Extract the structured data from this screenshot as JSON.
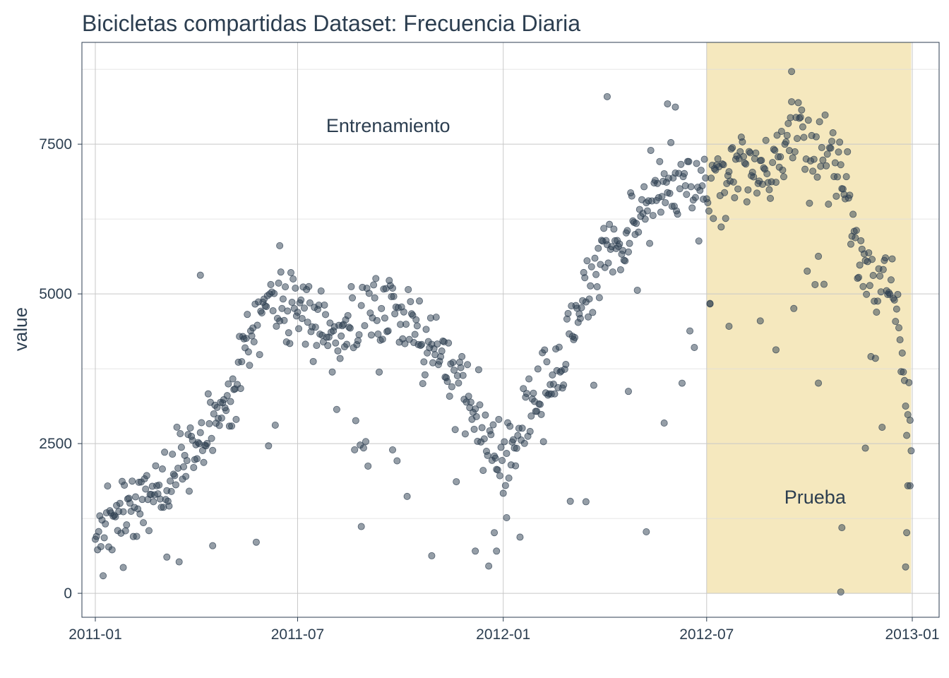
{
  "chart_data": {
    "type": "scatter",
    "title": "Bicicletas compartidas Dataset: Frecuencia Diaria",
    "xlabel": "",
    "ylabel": "value",
    "x_ticks": [
      "2011-01",
      "2011-07",
      "2012-01",
      "2012-07",
      "2013-01"
    ],
    "y_ticks": [
      0,
      2500,
      5000,
      7500
    ],
    "xlim": [
      "2010-12-20",
      "2013-01-25"
    ],
    "ylim": [
      -400,
      9200
    ],
    "grid": true,
    "legend": "none",
    "regions": [
      {
        "label": "Entrenamiento",
        "start": "2011-01-01",
        "end": "2012-06-30",
        "shaded": false,
        "label_x": "2011-09-20",
        "label_y": 7700
      },
      {
        "label": "Prueba",
        "start": "2012-07-01",
        "end": "2012-12-31",
        "shaded": true,
        "fill": "#F5E8BE",
        "label_x": "2012-10-06",
        "label_y": 1500,
        "y_range": [
          0,
          9200
        ]
      }
    ],
    "point_color": "#2C3E50",
    "point_opacity": 0.5,
    "series": [
      {
        "knots": [
          [
            "2011-01-01",
            1000
          ],
          [
            "2011-01-20",
            1250
          ],
          [
            "2011-02-10",
            1500
          ],
          [
            "2011-03-01",
            1800
          ],
          [
            "2011-03-20",
            2150
          ],
          [
            "2011-04-10",
            2500
          ],
          [
            "2011-05-01",
            3300
          ],
          [
            "2011-05-20",
            4400
          ],
          [
            "2011-06-10",
            4700
          ],
          [
            "2011-06-25",
            4800
          ],
          [
            "2011-07-10",
            4700
          ],
          [
            "2011-07-25",
            4500
          ],
          [
            "2011-08-15",
            4400
          ],
          [
            "2011-09-10",
            4700
          ],
          [
            "2011-09-25",
            4750
          ],
          [
            "2011-10-15",
            4300
          ],
          [
            "2011-11-05",
            3800
          ],
          [
            "2011-11-25",
            3400
          ],
          [
            "2011-12-15",
            2700
          ],
          [
            "2012-01-01",
            2300
          ],
          [
            "2012-01-20",
            2900
          ],
          [
            "2012-02-10",
            3500
          ],
          [
            "2012-03-01",
            4100
          ],
          [
            "2012-03-20",
            5300
          ],
          [
            "2012-04-10",
            5800
          ],
          [
            "2012-05-01",
            6200
          ],
          [
            "2012-05-20",
            6700
          ],
          [
            "2012-06-10",
            6800
          ],
          [
            "2012-06-30",
            6700
          ],
          [
            "2012-07-15",
            6900
          ],
          [
            "2012-08-10",
            7100
          ],
          [
            "2012-09-01",
            7300
          ],
          [
            "2012-09-20",
            7600
          ],
          [
            "2012-10-10",
            7400
          ],
          [
            "2012-10-31",
            7000
          ],
          [
            "2012-11-15",
            5500
          ],
          [
            "2012-12-01",
            5300
          ],
          [
            "2012-12-15",
            5000
          ],
          [
            "2012-12-31",
            2600
          ]
        ],
        "noise": 550,
        "outliers": [
          [
            "2011-01-26",
            431
          ],
          [
            "2011-03-06",
            605
          ],
          [
            "2011-04-16",
            795
          ],
          [
            "2011-08-27",
            1115
          ],
          [
            "2011-09-24",
            2395
          ],
          [
            "2011-10-29",
            627
          ],
          [
            "2011-12-07",
            705
          ],
          [
            "2011-12-24",
            1013
          ],
          [
            "2011-12-26",
            705
          ],
          [
            "2012-01-04",
            1263
          ],
          [
            "2012-03-15",
            1529
          ],
          [
            "2012-04-22",
            3372
          ],
          [
            "2012-05-08",
            1027
          ],
          [
            "2012-05-24",
            2843
          ],
          [
            "2012-07-04",
            4841
          ],
          [
            "2012-07-21",
            4459
          ],
          [
            "2012-08-18",
            4549
          ],
          [
            "2012-09-01",
            4066
          ],
          [
            "2012-10-09",
            3510
          ],
          [
            "2012-10-29",
            22
          ],
          [
            "2012-10-30",
            1096
          ],
          [
            "2012-11-20",
            2424
          ],
          [
            "2012-12-26",
            441
          ],
          [
            "2012-12-27",
            1013
          ],
          [
            "2012-12-28",
            1796
          ],
          [
            "2012-12-30",
            1796
          ],
          [
            "2011-04-05",
            5312
          ],
          [
            "2011-06-15",
            5805
          ],
          [
            "2012-04-03",
            8294
          ],
          [
            "2012-09-15",
            8714
          ],
          [
            "2012-05-27",
            8173
          ],
          [
            "2012-06-03",
            8120
          ]
        ]
      }
    ]
  }
}
